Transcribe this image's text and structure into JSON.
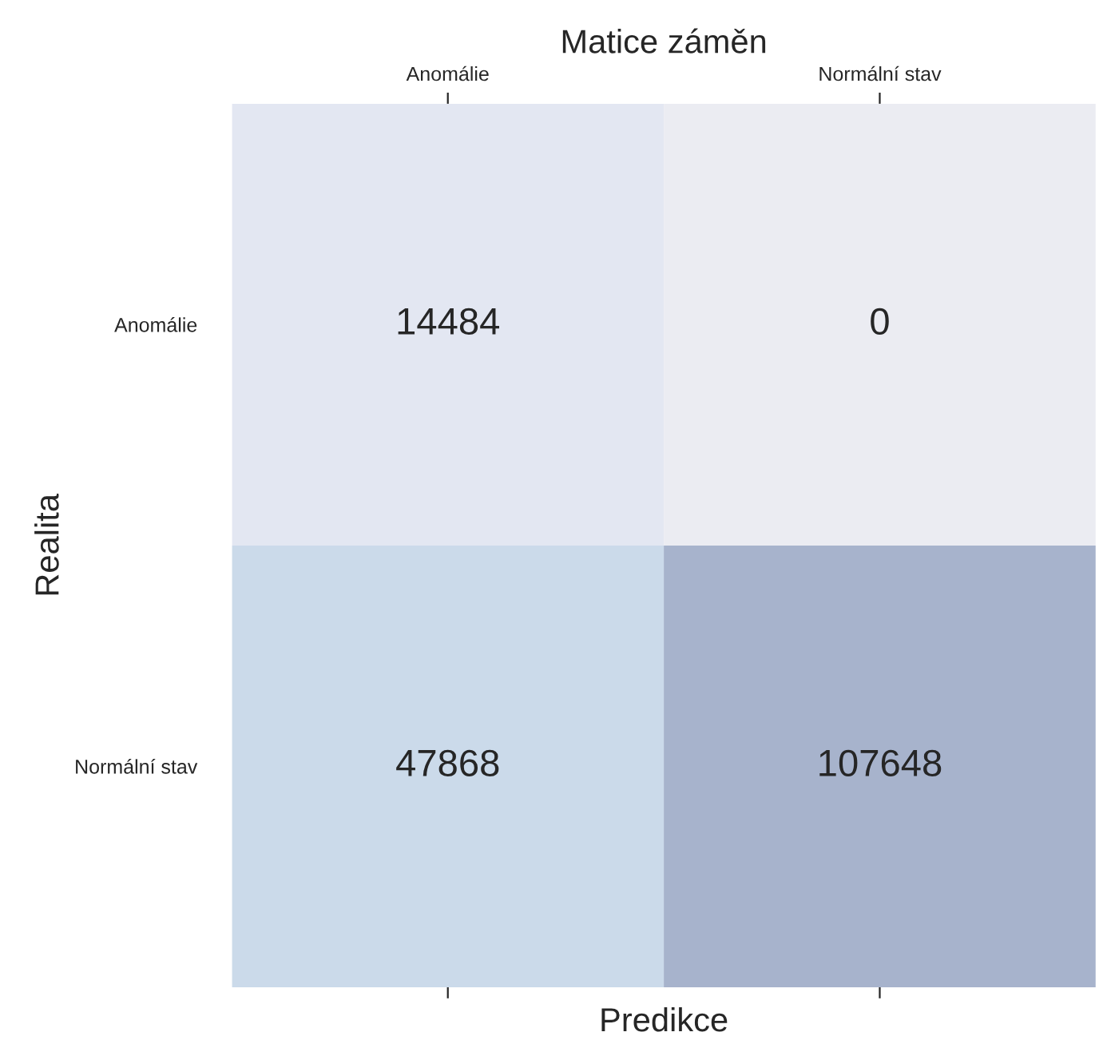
{
  "chart_data": {
    "type": "heatmap",
    "title": "Matice záměn",
    "xlabel": "Predikce",
    "ylabel": "Realita",
    "categories": [
      "Anomálie",
      "Normální stav"
    ],
    "y_categories": [
      "Anomálie",
      "Normální stav"
    ],
    "cells": [
      [
        14484,
        0
      ],
      [
        47868,
        107648
      ]
    ],
    "colors": [
      [
        "#e3e7f2",
        "#ebecf2"
      ],
      [
        "#cbdaea",
        "#a7b3cc"
      ]
    ],
    "data_labels": true
  }
}
